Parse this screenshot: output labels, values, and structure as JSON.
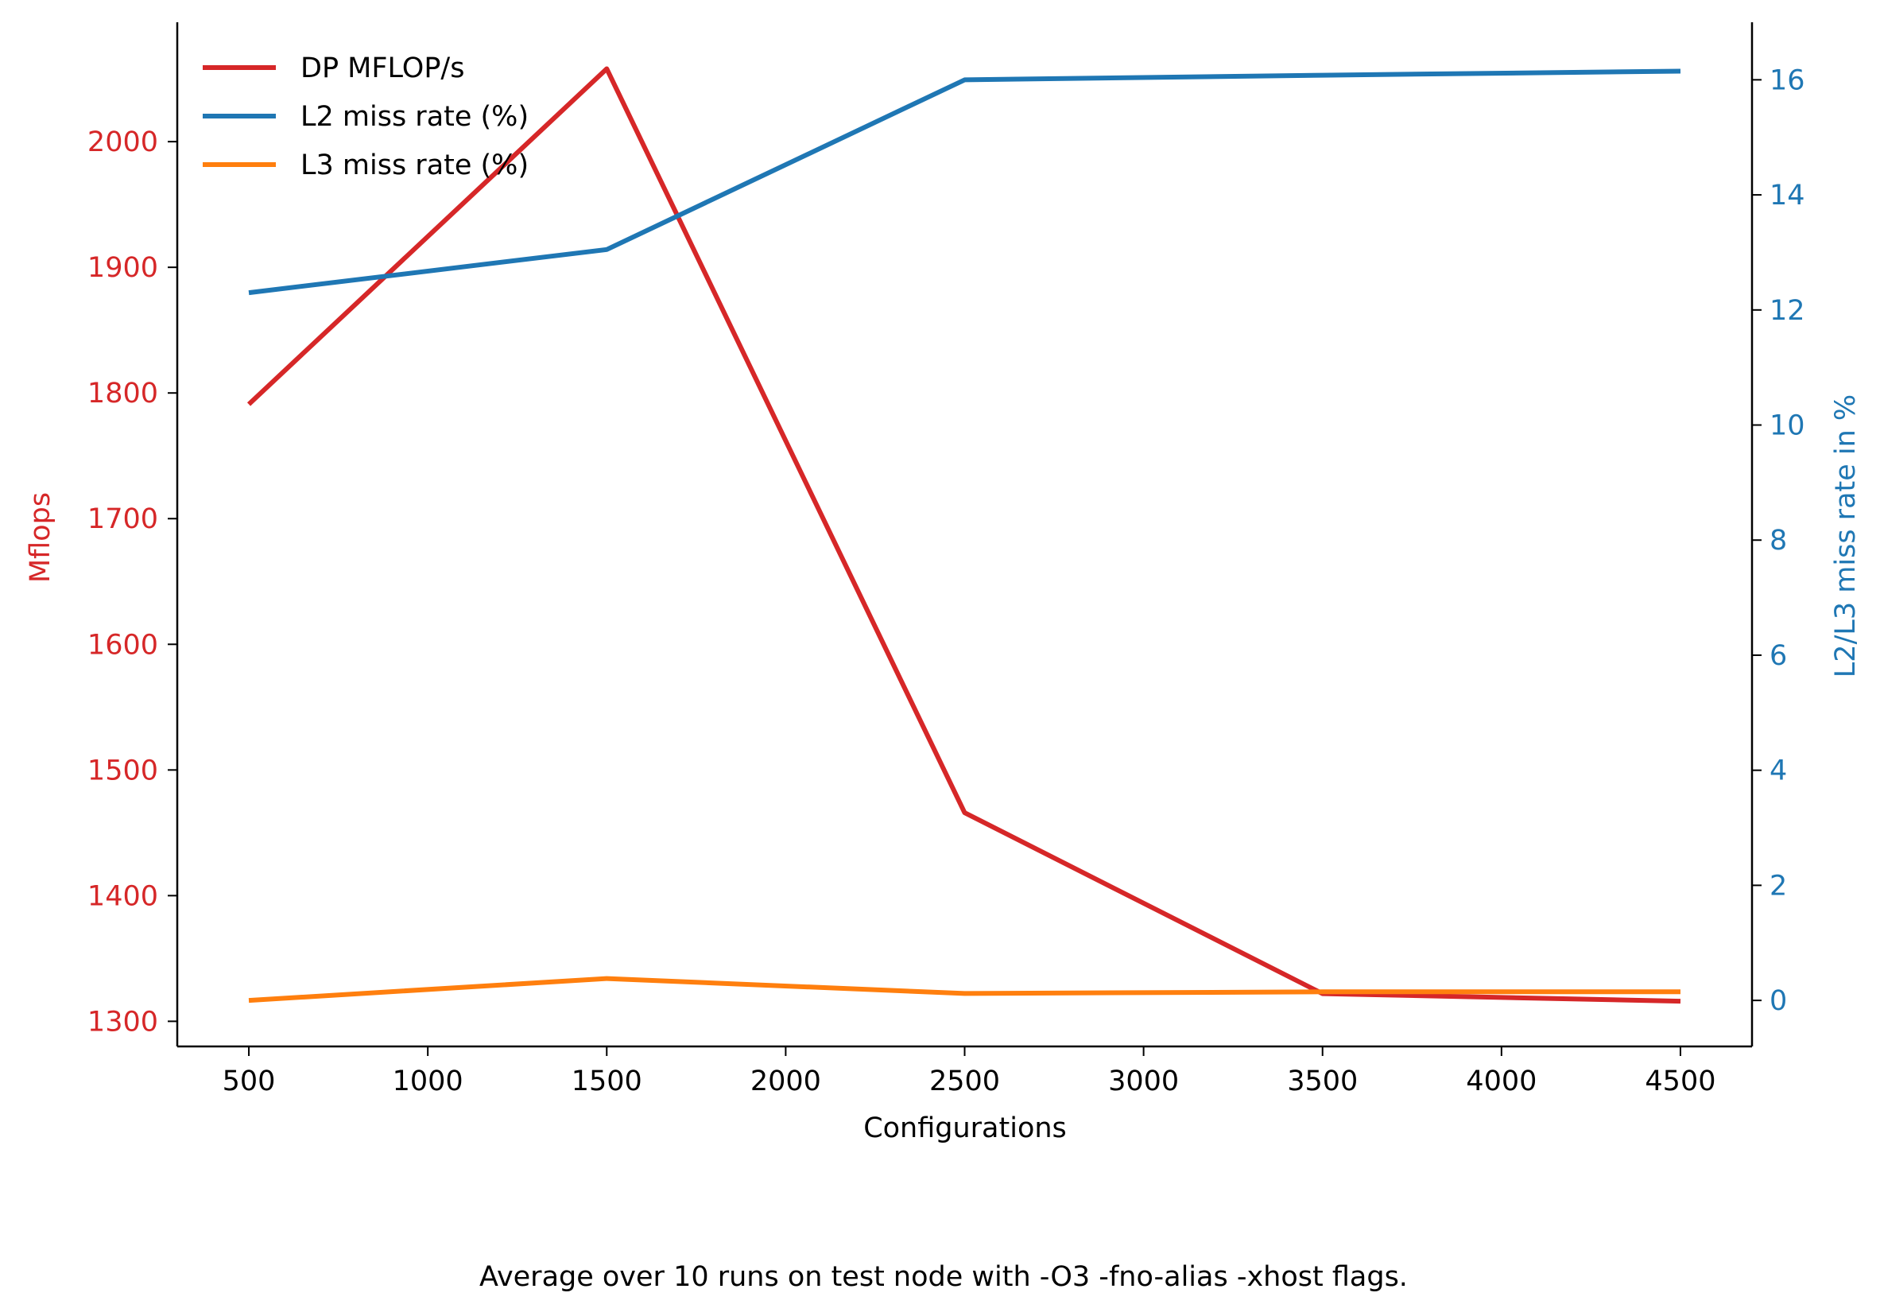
{
  "chart_data": {
    "type": "line",
    "x": [
      500,
      1500,
      2500,
      3500,
      4500
    ],
    "xlabel": "Configurations",
    "xticks": [
      500,
      1000,
      1500,
      2000,
      2500,
      3000,
      3500,
      4000,
      4500
    ],
    "xlim": [
      300,
      4700
    ],
    "ylabel_left": "Mflops",
    "ylabel_right": "L2/L3 miss rate in %",
    "ylim_left": [
      1280,
      2095
    ],
    "yticks_left": [
      1300,
      1400,
      1500,
      1600,
      1700,
      1800,
      1900,
      2000
    ],
    "ylim_right": [
      -0.8,
      17.0
    ],
    "yticks_right": [
      0,
      2,
      4,
      6,
      8,
      10,
      12,
      14,
      16
    ],
    "left_axis_color": "#d62728",
    "right_axis_color": "#1f77b4",
    "grid": false,
    "legend_position": "upper-left",
    "caption": "Average over 10 runs on test node with -O3 -fno-alias -xhost flags.",
    "series": [
      {
        "name": "DP MFLOP/s",
        "axis": "left",
        "color": "#d62728",
        "values": [
          1791,
          2058,
          1466,
          1322,
          1316
        ]
      },
      {
        "name": "L2 miss rate (%)",
        "axis": "right",
        "color": "#1f77b4",
        "values": [
          12.3,
          13.05,
          16.0,
          16.08,
          16.15
        ]
      },
      {
        "name": "L3 miss rate (%)",
        "axis": "right",
        "color": "#ff7f0e",
        "values": [
          0.0,
          0.38,
          0.12,
          0.15,
          0.15
        ]
      }
    ]
  }
}
